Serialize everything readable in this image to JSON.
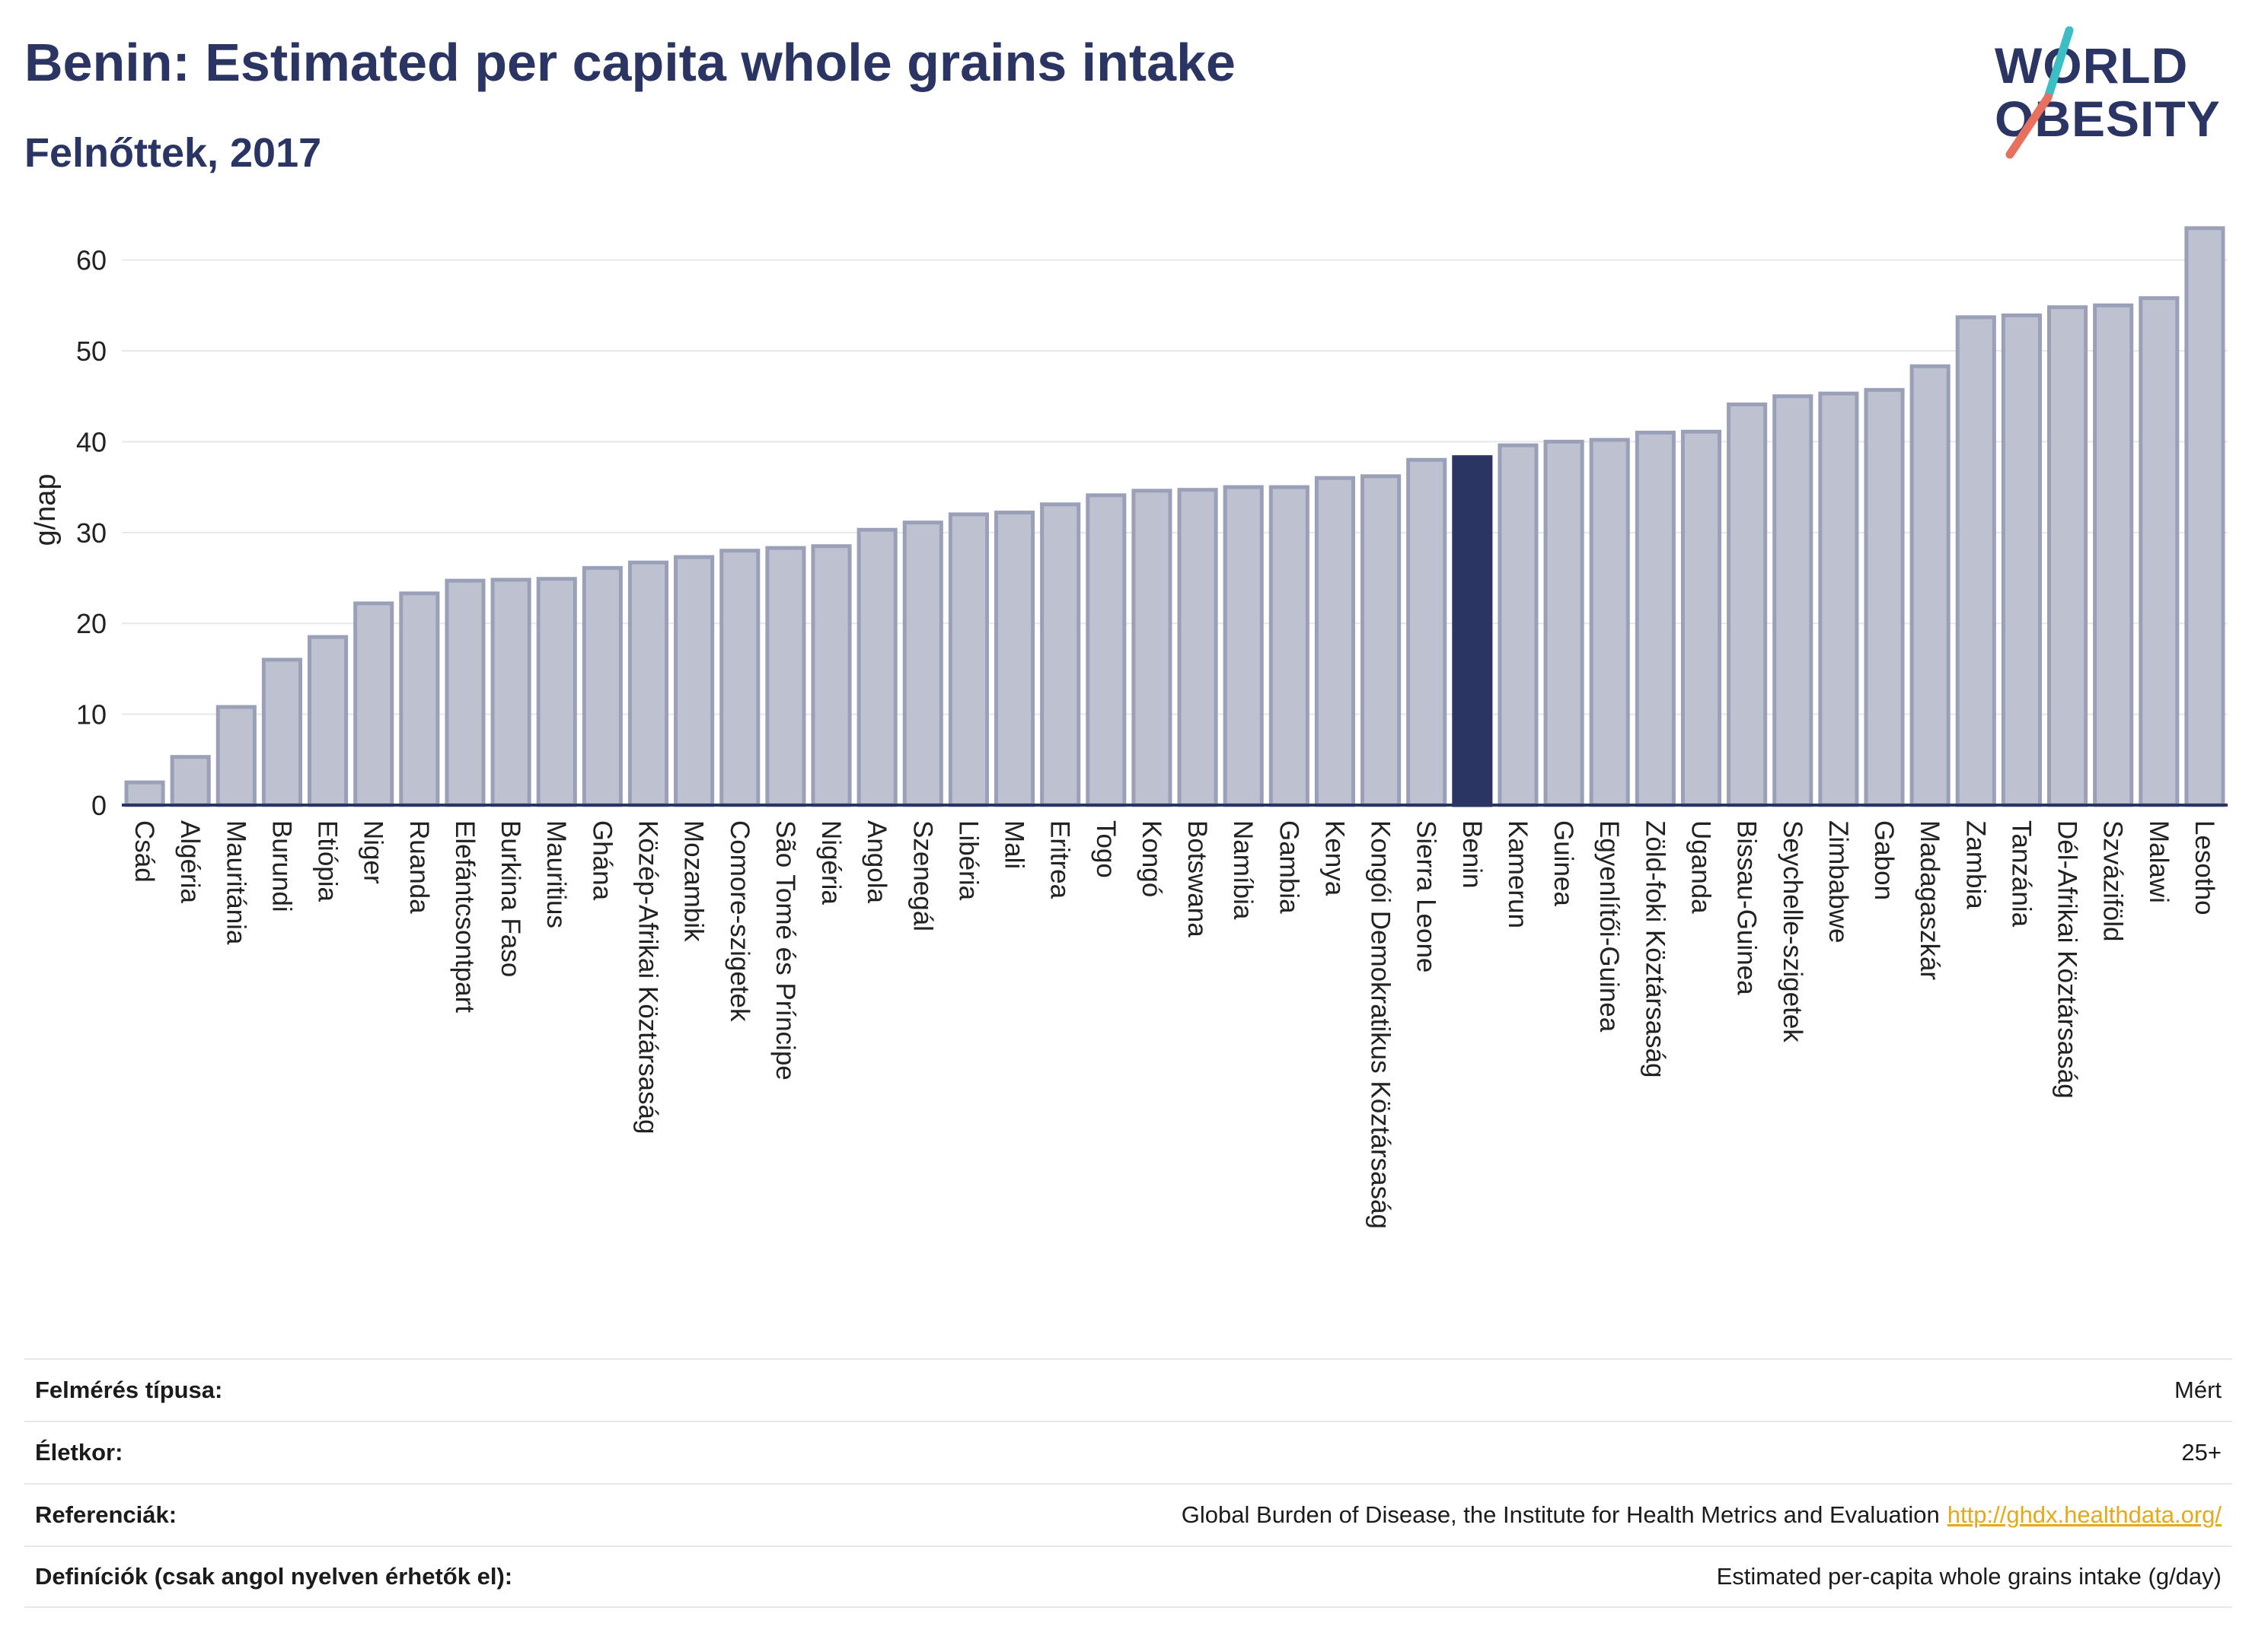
{
  "header": {
    "title": "Benin: Estimated per capita whole grains intake",
    "subtitle": "Felnőttek, 2017"
  },
  "logo": {
    "line1": "WORLD",
    "line2": "OBESITY",
    "colors": {
      "text": "#2a3563",
      "slash_top": "#3bbfc4",
      "slash_bottom": "#e8705f"
    }
  },
  "chart_data": {
    "type": "bar",
    "ylabel": "g/nap",
    "xlabel": "",
    "ylim": [
      0,
      66
    ],
    "yticks": [
      0,
      10,
      20,
      30,
      40,
      50,
      60
    ],
    "grid": true,
    "highlight": "Benin",
    "colors": {
      "bar": "#bec2d0",
      "bar_edge": "#9aa0b8",
      "highlight": "#2a3563"
    },
    "categories": [
      "Csád",
      "Algéria",
      "Mauritánia",
      "Burundi",
      "Etiópia",
      "Niger",
      "Ruanda",
      "Elefántcsontpart",
      "Burkina Faso",
      "Mauritius",
      "Ghána",
      "Közép-Afrikai Köztársaság",
      "Mozambik",
      "Comore-szigetek",
      "São Tomé és Príncipe",
      "Nigéria",
      "Angola",
      "Szenegál",
      "Libéria",
      "Mali",
      "Eritrea",
      "Togo",
      "Kongó",
      "Botswana",
      "Namíbia",
      "Gambia",
      "Kenya",
      "Kongói Demokratikus Köztársaság",
      "Sierra Leone",
      "Benin",
      "Kamerun",
      "Guinea",
      "Egyenlítői-Guinea",
      "Zöld-foki Köztársaság",
      "Uganda",
      "Bissau-Guinea",
      "Seychelle-szigetek",
      "Zimbabwe",
      "Gabon",
      "Madagaszkár",
      "Zambia",
      "Tanzánia",
      "Dél-Afrikai Köztársaság",
      "Szváziföld",
      "Malawi",
      "Lesotho"
    ],
    "values": [
      2.5,
      5.3,
      10.8,
      16.0,
      18.5,
      22.2,
      23.3,
      24.7,
      24.8,
      24.9,
      26.1,
      26.7,
      27.3,
      28.0,
      28.3,
      28.5,
      30.3,
      31.1,
      32.0,
      32.2,
      33.1,
      34.1,
      34.6,
      34.7,
      35.0,
      35.0,
      36.0,
      36.2,
      38.0,
      38.3,
      39.6,
      40.0,
      40.2,
      41.0,
      41.1,
      44.1,
      45.0,
      45.3,
      45.7,
      48.3,
      53.7,
      53.9,
      54.8,
      55.0,
      55.8,
      63.5
    ]
  },
  "info": {
    "rows": [
      {
        "label": "Felmérés típusa:",
        "value": "Mért"
      },
      {
        "label": "Életkor:",
        "value": "25+"
      },
      {
        "label": "Referenciák:",
        "value": "Global Burden of Disease, the Institute for Health Metrics and Evaluation",
        "link": "http://ghdx.healthdata.org/"
      },
      {
        "label": "Definíciók (csak angol nyelven érhetők el):",
        "value": "Estimated per-capita whole grains intake (g/day)"
      }
    ]
  }
}
